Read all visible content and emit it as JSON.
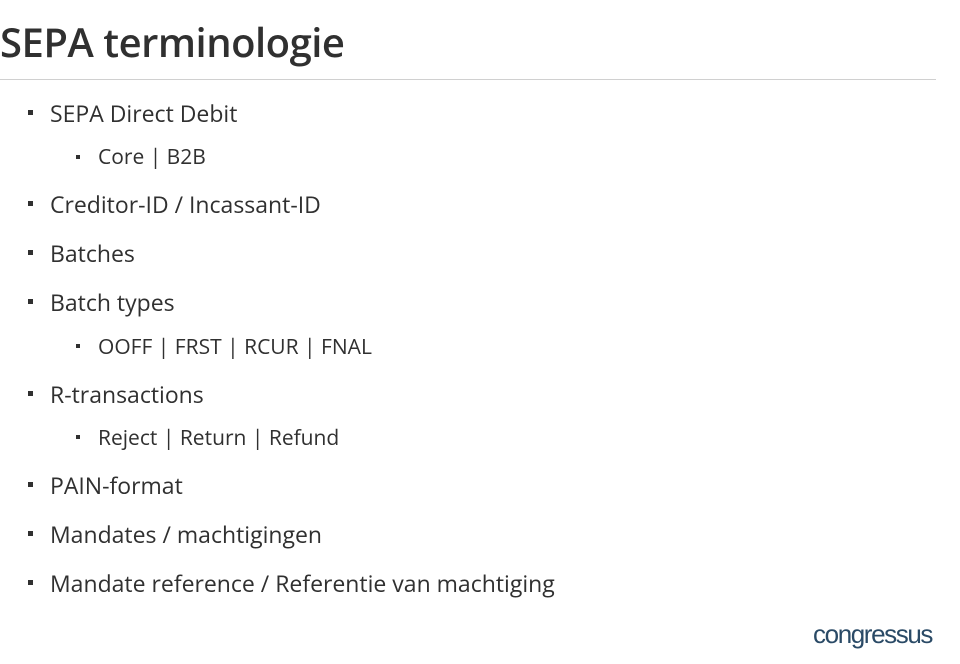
{
  "title": "SEPA terminologie",
  "colors": {
    "text": "#303030",
    "rule": "#d0d0d0",
    "logo": "#2a4a66",
    "background": "#ffffff",
    "bullet": "#303030"
  },
  "typography": {
    "title_fontsize_pt": 30,
    "lvl1_fontsize_pt": 17,
    "lvl2_fontsize_pt": 16,
    "font_family": "Open Sans / sans-serif"
  },
  "bullets": [
    {
      "text": "SEPA Direct Debit",
      "children": [
        {
          "text": "Core | B2B"
        }
      ]
    },
    {
      "text": "Creditor-ID / Incassant-ID"
    },
    {
      "text": "Batches"
    },
    {
      "text": "Batch types",
      "children": [
        {
          "text": "OOFF | FRST | RCUR | FNAL"
        }
      ]
    },
    {
      "text": "R-transactions",
      "children": [
        {
          "text": "Reject | Return | Refund"
        }
      ]
    },
    {
      "text": "PAIN-format"
    },
    {
      "text": "Mandates / machtigingen"
    },
    {
      "text": "Mandate reference / Referentie van machtiging"
    }
  ],
  "logo": "congressus"
}
